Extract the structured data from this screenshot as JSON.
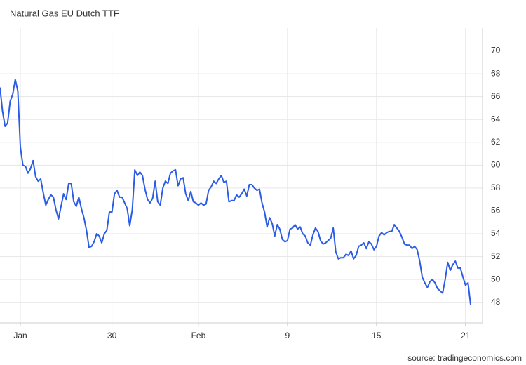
{
  "chart_data": {
    "type": "line",
    "title": "Natural Gas EU Dutch TTF",
    "source": "source: tradingeconomics.com",
    "color": "#2b5ce6",
    "grid": true,
    "y_axis_side": "right",
    "ylim": [
      46.2,
      72.0
    ],
    "yticks": [
      48,
      50,
      52,
      54,
      56,
      58,
      60,
      62,
      64,
      66,
      68,
      70
    ],
    "categories": [
      null,
      null,
      null,
      null,
      null,
      null,
      null,
      null,
      "Jan",
      null,
      null,
      null,
      null,
      null,
      null,
      null,
      null,
      null,
      null,
      null,
      null,
      null,
      null,
      null,
      null,
      null,
      null,
      null,
      null,
      null,
      null,
      null,
      null,
      null,
      null,
      null,
      null,
      null,
      null,
      null,
      null,
      null,
      null,
      null,
      "30",
      null,
      null,
      null,
      null,
      null,
      null,
      null,
      null,
      null,
      null,
      null,
      null,
      null,
      null,
      null,
      null,
      null,
      null,
      null,
      null,
      null,
      null,
      null,
      null,
      null,
      null,
      null,
      null,
      null,
      null,
      null,
      null,
      null,
      "Feb",
      null,
      null,
      null,
      null,
      null,
      null,
      null,
      null,
      null,
      null,
      null,
      null,
      null,
      null,
      null,
      null,
      null,
      null,
      null,
      null,
      null,
      null,
      null,
      null,
      null,
      null,
      null,
      null,
      null,
      null,
      null,
      null,
      null,
      null,
      "9",
      null,
      null,
      null,
      null,
      null,
      null,
      null,
      null,
      null,
      null,
      null,
      null,
      null,
      null,
      null,
      null,
      null,
      null,
      null,
      null,
      null,
      null,
      null,
      null,
      null,
      null,
      null,
      null,
      null,
      null,
      null,
      null,
      null,
      null,
      "15",
      null,
      null,
      null,
      null,
      null,
      null,
      null,
      null,
      null,
      null,
      null,
      null,
      null,
      null,
      null,
      null,
      null,
      null,
      null,
      null,
      null,
      null,
      null,
      null,
      null,
      null,
      null,
      null,
      null,
      null,
      null,
      null,
      null,
      null,
      "21",
      null,
      null
    ],
    "values": [
      66.8,
      64.7,
      63.4,
      63.7,
      65.6,
      66.2,
      67.5,
      66.5,
      61.6,
      60.0,
      59.9,
      59.3,
      59.7,
      60.4,
      59.0,
      58.6,
      58.8,
      57.6,
      56.5,
      57.0,
      57.4,
      57.2,
      56.1,
      55.3,
      56.4,
      57.5,
      57.0,
      58.4,
      58.4,
      56.8,
      56.4,
      57.2,
      56.2,
      55.4,
      54.3,
      52.8,
      52.9,
      53.3,
      54.0,
      53.8,
      53.2,
      54.0,
      54.3,
      55.9,
      55.9,
      57.5,
      57.8,
      57.2,
      57.2,
      56.7,
      56.2,
      54.7,
      56.1,
      59.6,
      59.1,
      59.4,
      59.1,
      57.9,
      57.0,
      56.7,
      57.1,
      58.6,
      56.8,
      56.5,
      58.0,
      58.6,
      58.4,
      59.3,
      59.5,
      59.6,
      58.2,
      58.8,
      58.9,
      57.5,
      56.9,
      57.7,
      56.8,
      56.7,
      56.5,
      56.7,
      56.5,
      56.6,
      57.8,
      58.1,
      58.6,
      58.4,
      58.8,
      59.1,
      58.5,
      58.6,
      56.8,
      56.9,
      56.9,
      57.4,
      57.2,
      57.5,
      57.9,
      57.3,
      58.3,
      58.3,
      58.0,
      57.8,
      57.9,
      56.7,
      55.9,
      54.6,
      55.4,
      54.9,
      53.8,
      54.8,
      54.4,
      53.5,
      53.3,
      53.4,
      54.4,
      54.5,
      54.8,
      54.4,
      54.6,
      54.0,
      53.8,
      53.2,
      53.0,
      53.9,
      54.5,
      54.2,
      53.4,
      53.1,
      53.2,
      53.4,
      53.6,
      54.5,
      52.4,
      51.8,
      51.9,
      51.9,
      52.2,
      52.1,
      52.5,
      51.8,
      52.1,
      52.9,
      53.0,
      53.2,
      52.7,
      53.3,
      53.1,
      52.6,
      52.9,
      53.8,
      54.1,
      53.9,
      54.1,
      54.2,
      54.2,
      54.8,
      54.5,
      54.2,
      53.7,
      53.1,
      53.0,
      53.0,
      52.7,
      52.9,
      52.6,
      51.6,
      50.2,
      49.7,
      49.3,
      49.8,
      50.0,
      49.7,
      49.2,
      49.0,
      48.8,
      50.0,
      51.5,
      50.8,
      51.3,
      51.6,
      51.0,
      51.0,
      50.2,
      49.5,
      49.7,
      47.8
    ]
  }
}
